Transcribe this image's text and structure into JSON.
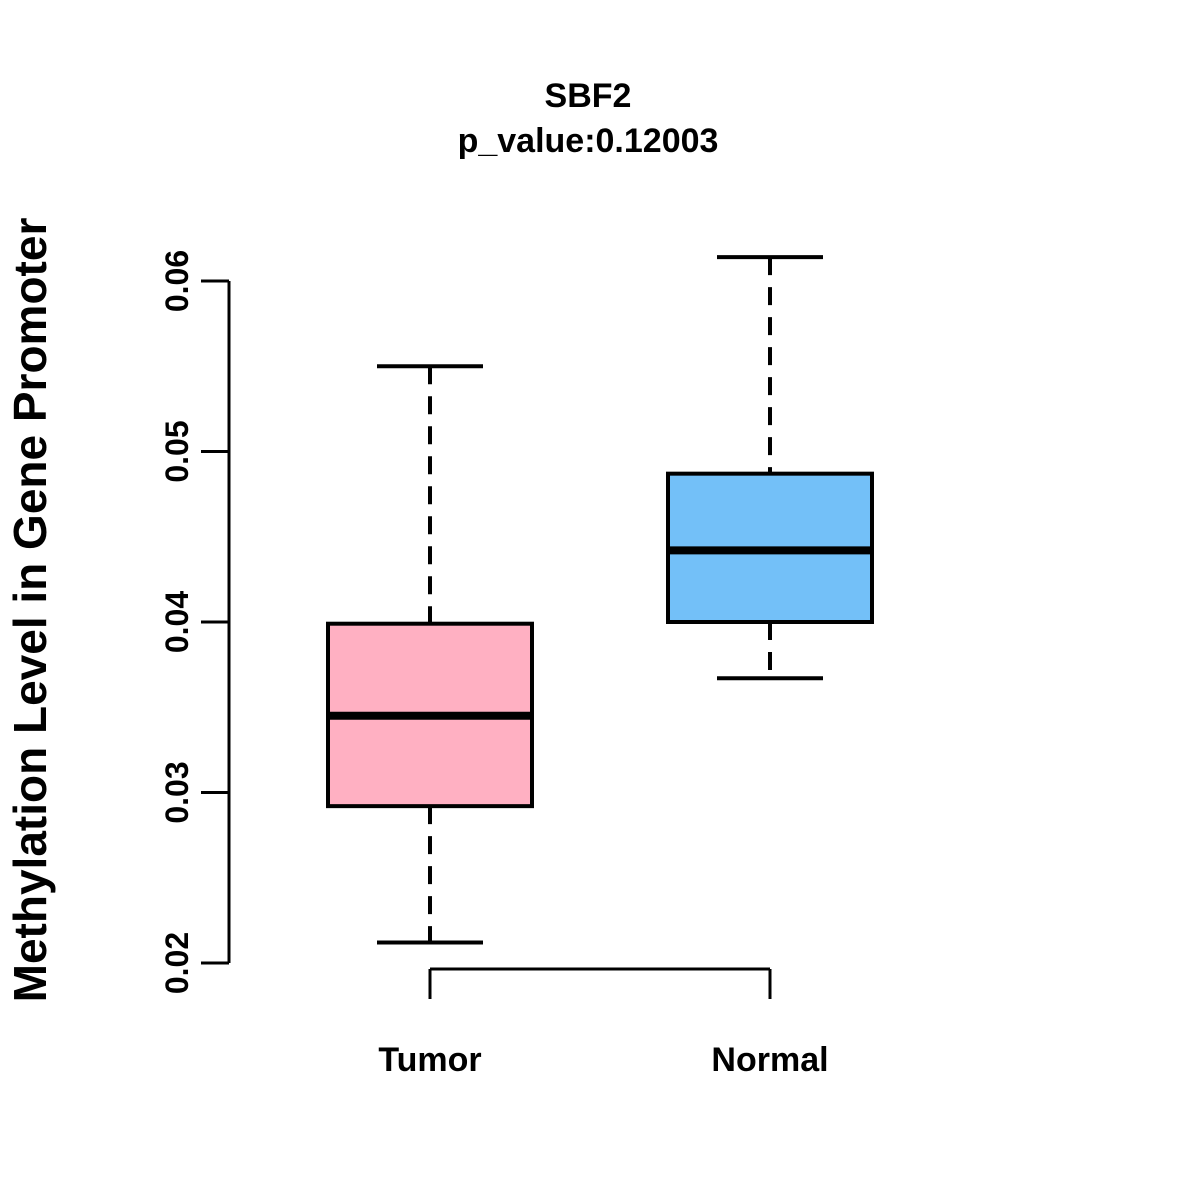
{
  "header": {
    "title": "SBF2",
    "subtitle": "p_value:0.12003"
  },
  "colors": {
    "background": "#FFFFFF",
    "foreground": "#000000",
    "tumor_fill": "#FFB0C2",
    "normal_fill": "#73C0F8"
  },
  "chart_data": {
    "type": "boxplot",
    "title": "SBF2",
    "subtitle": "p_value:0.12003",
    "p_value": 0.12003,
    "ylabel": "Methylation Level in Gene Promoter",
    "xlabel": "",
    "ylim": [
      0.02,
      0.06
    ],
    "yticks": [
      0.06,
      0.05,
      0.04,
      0.03,
      0.02
    ],
    "ytick_labels": [
      "0.06",
      "0.05",
      "0.04",
      "0.03",
      "0.02"
    ],
    "grid": false,
    "legend": "none",
    "categories": [
      "Tumor",
      "Normal"
    ],
    "series": [
      {
        "name": "Tumor",
        "color": "#FFB0C2",
        "whisker_low": 0.0212,
        "q1": 0.0292,
        "median": 0.0345,
        "q3": 0.0399,
        "whisker_high": 0.055
      },
      {
        "name": "Normal",
        "color": "#73C0F8",
        "whisker_low": 0.0367,
        "q1": 0.04,
        "median": 0.0442,
        "q3": 0.0487,
        "whisker_high": 0.0614
      }
    ]
  }
}
